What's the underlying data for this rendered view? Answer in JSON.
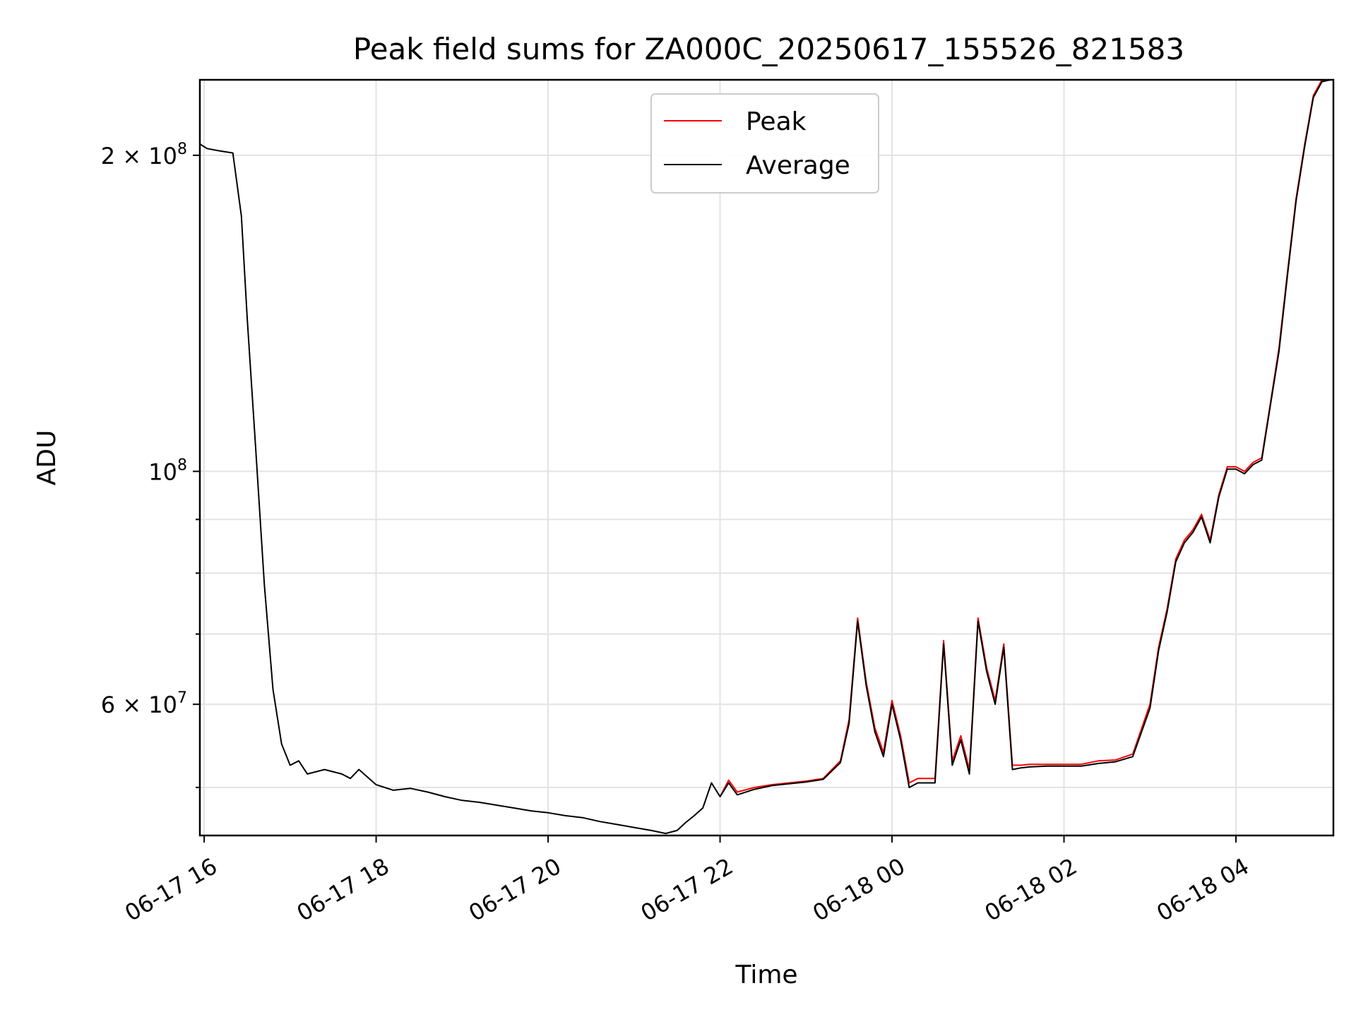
{
  "chart_data": {
    "type": "line",
    "title": "Peak field sums for ZA000C_20250617_155526_821583",
    "xlabel": "Time",
    "ylabel": "ADU",
    "y_scale": "log",
    "ylim": [
      45000000,
      236000000
    ],
    "xlim": [
      "06-17 15:57",
      "06-18 05:08"
    ],
    "grid": true,
    "legend_position": "top-center",
    "x_ticks": [
      {
        "t": "06-17 16:00",
        "label": "06-17 16"
      },
      {
        "t": "06-17 18:00",
        "label": "06-17 18"
      },
      {
        "t": "06-17 20:00",
        "label": "06-17 20"
      },
      {
        "t": "06-17 22:00",
        "label": "06-17 22"
      },
      {
        "t": "06-18 00:00",
        "label": "06-18 00"
      },
      {
        "t": "06-18 02:00",
        "label": "06-18 02"
      },
      {
        "t": "06-18 04:00",
        "label": "06-18 04"
      }
    ],
    "y_ticks_labeled": [
      {
        "value": 200000000,
        "mantissa": "2",
        "exponent": "8"
      },
      {
        "value": 100000000,
        "mantissa": "",
        "exponent": "8"
      },
      {
        "value": 60000000,
        "mantissa": "6",
        "exponent": "7"
      }
    ],
    "y_ticks_minor": [
      50000000,
      70000000,
      80000000,
      90000000
    ],
    "series": [
      {
        "name": "Peak",
        "color": "#ff0000",
        "x": [
          "06-17 22:00",
          "06-17 22:06",
          "06-17 22:12",
          "06-17 22:24",
          "06-17 22:36",
          "06-17 22:48",
          "06-17 23:00",
          "06-17 23:12",
          "06-17 23:24",
          "06-17 23:30",
          "06-17 23:36",
          "06-17 23:42",
          "06-17 23:48",
          "06-17 23:54",
          "06-18 00:00",
          "06-18 00:06",
          "06-18 00:12",
          "06-18 00:18",
          "06-18 00:24",
          "06-18 00:30",
          "06-18 00:36",
          "06-18 00:42",
          "06-18 00:48",
          "06-18 00:54",
          "06-18 01:00",
          "06-18 01:06",
          "06-18 01:12",
          "06-18 01:18",
          "06-18 01:24",
          "06-18 01:30",
          "06-18 01:36",
          "06-18 01:48",
          "06-18 02:00",
          "06-18 02:12",
          "06-18 02:24",
          "06-18 02:36",
          "06-18 02:48",
          "06-18 03:00",
          "06-18 03:06",
          "06-18 03:12",
          "06-18 03:18",
          "06-18 03:24",
          "06-18 03:30",
          "06-18 03:36",
          "06-18 03:42",
          "06-18 03:48",
          "06-18 03:54",
          "06-18 04:00",
          "06-18 04:06",
          "06-18 04:12",
          "06-18 04:18",
          "06-18 04:24",
          "06-18 04:30",
          "06-18 04:36",
          "06-18 04:42",
          "06-18 04:48",
          "06-18 04:54",
          "06-18 05:00",
          "06-18 05:06"
        ],
        "values": [
          49000000,
          50800000,
          49500000,
          50000000,
          50300000,
          50500000,
          50700000,
          51000000,
          53000000,
          58000000,
          72500000,
          63000000,
          57000000,
          54000000,
          60500000,
          56000000,
          50500000,
          51000000,
          51000000,
          51000000,
          69000000,
          53000000,
          56000000,
          52000000,
          72500000,
          65000000,
          60500000,
          68500000,
          52500000,
          52500000,
          52600000,
          52600000,
          52600000,
          52600000,
          53000000,
          53100000,
          53800000,
          60000000,
          68000000,
          74000000,
          82500000,
          86000000,
          88000000,
          91000000,
          86000000,
          95000000,
          101000000,
          101000000,
          100000000,
          102000000,
          103000000,
          116000000,
          131000000,
          155000000,
          182000000,
          205000000,
          228000000,
          236000000,
          236000000
        ]
      },
      {
        "name": "Average",
        "color": "#000000",
        "x": [
          "06-17 15:57",
          "06-17 16:02",
          "06-17 16:10",
          "06-17 16:20",
          "06-17 16:26",
          "06-17 16:30",
          "06-17 16:36",
          "06-17 16:42",
          "06-17 16:48",
          "06-17 16:54",
          "06-17 17:00",
          "06-17 17:06",
          "06-17 17:12",
          "06-17 17:24",
          "06-17 17:36",
          "06-17 17:42",
          "06-17 17:48",
          "06-17 18:00",
          "06-17 18:12",
          "06-17 18:24",
          "06-17 18:36",
          "06-17 18:48",
          "06-17 19:00",
          "06-17 19:12",
          "06-17 19:24",
          "06-17 19:36",
          "06-17 19:48",
          "06-17 20:00",
          "06-17 20:12",
          "06-17 20:24",
          "06-17 20:36",
          "06-17 20:48",
          "06-17 21:00",
          "06-17 21:12",
          "06-17 21:22",
          "06-17 21:30",
          "06-17 21:36",
          "06-17 21:42",
          "06-17 21:48",
          "06-17 21:54",
          "06-17 22:00",
          "06-17 22:06",
          "06-17 22:12",
          "06-17 22:24",
          "06-17 22:36",
          "06-17 22:48",
          "06-17 23:00",
          "06-17 23:12",
          "06-17 23:24",
          "06-17 23:30",
          "06-17 23:36",
          "06-17 23:42",
          "06-17 23:48",
          "06-17 23:54",
          "06-18 00:00",
          "06-18 00:06",
          "06-18 00:12",
          "06-18 00:18",
          "06-18 00:24",
          "06-18 00:30",
          "06-18 00:36",
          "06-18 00:42",
          "06-18 00:48",
          "06-18 00:54",
          "06-18 01:00",
          "06-18 01:06",
          "06-18 01:12",
          "06-18 01:18",
          "06-18 01:24",
          "06-18 01:30",
          "06-18 01:36",
          "06-18 01:48",
          "06-18 02:00",
          "06-18 02:12",
          "06-18 02:24",
          "06-18 02:36",
          "06-18 02:48",
          "06-18 03:00",
          "06-18 03:06",
          "06-18 03:12",
          "06-18 03:18",
          "06-18 03:24",
          "06-18 03:30",
          "06-18 03:36",
          "06-18 03:42",
          "06-18 03:48",
          "06-18 03:54",
          "06-18 04:00",
          "06-18 04:06",
          "06-18 04:12",
          "06-18 04:18",
          "06-18 04:24",
          "06-18 04:30",
          "06-18 04:36",
          "06-18 04:42",
          "06-18 04:48",
          "06-18 04:54",
          "06-18 05:00",
          "06-18 05:06"
        ],
        "values": [
          205000000,
          203000000,
          202000000,
          201000000,
          175000000,
          140000000,
          105000000,
          78000000,
          62000000,
          55000000,
          52500000,
          53000000,
          51500000,
          52000000,
          51500000,
          51000000,
          52000000,
          50300000,
          49700000,
          49900000,
          49500000,
          49000000,
          48600000,
          48400000,
          48100000,
          47800000,
          47500000,
          47300000,
          47000000,
          46800000,
          46400000,
          46100000,
          45800000,
          45500000,
          45200000,
          45500000,
          46300000,
          47000000,
          47800000,
          50500000,
          49000000,
          50500000,
          49200000,
          49800000,
          50200000,
          50400000,
          50600000,
          50900000,
          52800000,
          57500000,
          72000000,
          62500000,
          56500000,
          53500000,
          60000000,
          55500000,
          50000000,
          50500000,
          50500000,
          50500000,
          68500000,
          52500000,
          55500000,
          51500000,
          72000000,
          64500000,
          60000000,
          68000000,
          52000000,
          52200000,
          52300000,
          52400000,
          52400000,
          52400000,
          52700000,
          52900000,
          53500000,
          59500000,
          67500000,
          73500000,
          82000000,
          85500000,
          87500000,
          90500000,
          85500000,
          94500000,
          100500000,
          100500000,
          99500000,
          101500000,
          102500000,
          115500000,
          130000000,
          154000000,
          181000000,
          204000000,
          227000000,
          235000000,
          236000000
        ]
      }
    ]
  }
}
